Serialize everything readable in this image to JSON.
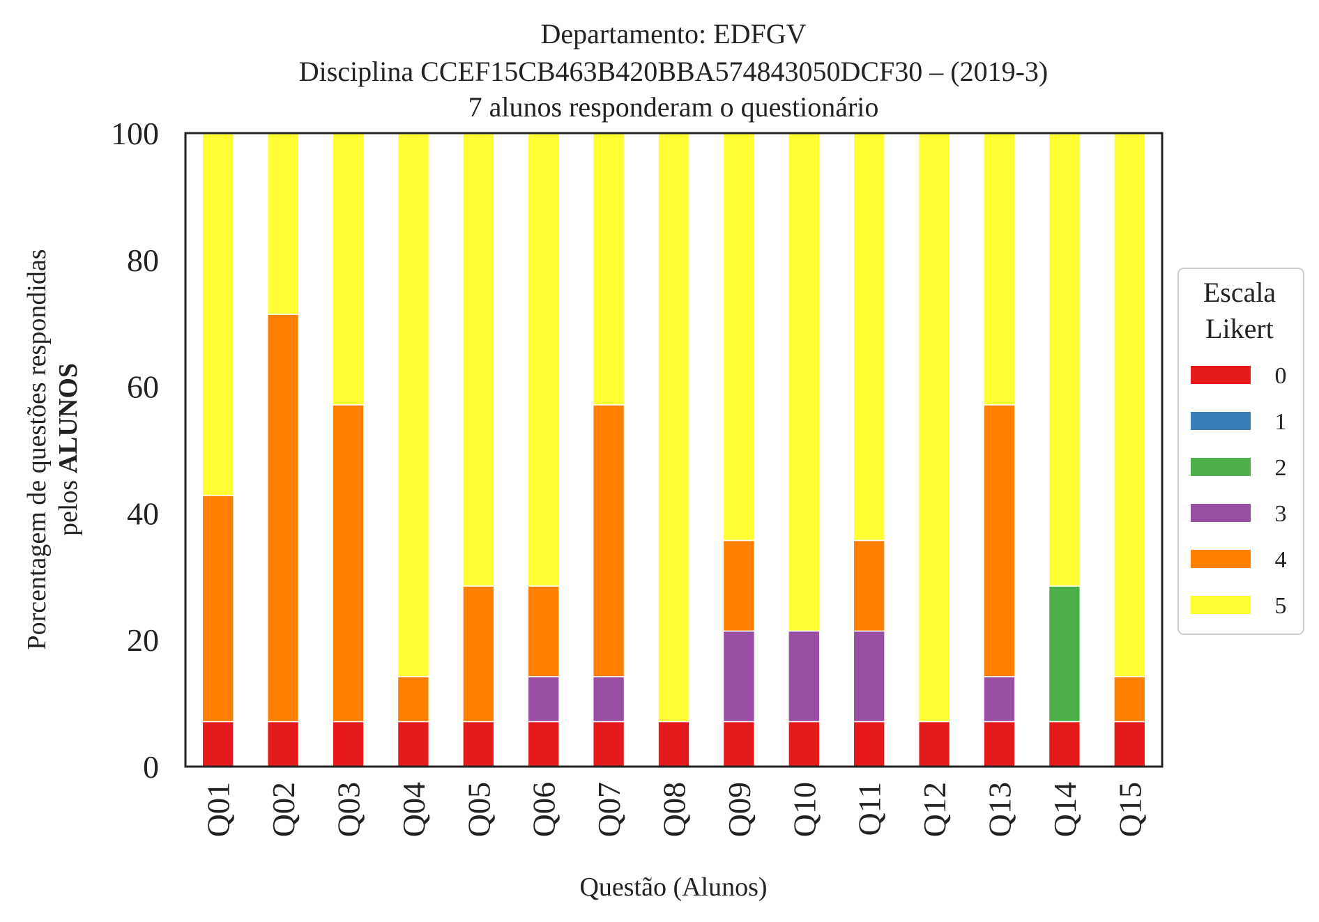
{
  "chart_data": {
    "type": "bar",
    "stacked": true,
    "title_lines": [
      "Departamento: EDFGV",
      "Disciplina CCEF15CB463B420BBA574843050DCF30 – (2019-3)",
      "7 alunos responderam o questionário"
    ],
    "xlabel": "Questão (Alunos)",
    "ylabel_line1": "Porcentagem de questões respondidas",
    "ylabel_line2_prefix": "pelos ",
    "ylabel_line2_bold": "ALUNOS",
    "ylim": [
      0,
      100
    ],
    "yticks": [
      "0",
      "20",
      "40",
      "60",
      "80",
      "100"
    ],
    "grid": false,
    "categories": [
      "Q01",
      "Q02",
      "Q03",
      "Q04",
      "Q05",
      "Q06",
      "Q07",
      "Q08",
      "Q09",
      "Q10",
      "Q11",
      "Q12",
      "Q13",
      "Q14",
      "Q15"
    ],
    "legend": {
      "title_lines": [
        "Escala",
        "Likert"
      ],
      "placement": "right"
    },
    "series": [
      {
        "name": "0",
        "color": "#e41a1c",
        "values": [
          7.1,
          7.1,
          7.1,
          7.1,
          7.1,
          7.1,
          7.1,
          7.1,
          7.1,
          7.1,
          7.1,
          7.1,
          7.1,
          7.1,
          7.1
        ]
      },
      {
        "name": "1",
        "color": "#377eb8",
        "values": [
          0,
          0,
          0,
          0,
          0,
          0,
          0,
          0,
          0,
          0,
          0,
          0,
          0,
          0,
          0
        ]
      },
      {
        "name": "2",
        "color": "#4daf4a",
        "values": [
          0,
          0,
          0,
          0,
          0,
          0,
          0,
          0,
          0,
          0,
          0,
          0,
          0,
          21.4,
          0
        ]
      },
      {
        "name": "3",
        "color": "#984ea3",
        "values": [
          0,
          0,
          0,
          0,
          0,
          7.1,
          7.1,
          0,
          14.3,
          14.3,
          14.3,
          0,
          7.1,
          0,
          0
        ]
      },
      {
        "name": "4",
        "color": "#ff7f00",
        "values": [
          35.7,
          64.3,
          50.0,
          7.1,
          21.4,
          14.3,
          42.9,
          0,
          14.3,
          0,
          14.3,
          0,
          42.9,
          0,
          7.1
        ]
      },
      {
        "name": "5",
        "color": "#ffff33",
        "values": [
          57.1,
          28.6,
          42.9,
          85.7,
          71.4,
          71.4,
          42.9,
          92.9,
          64.3,
          78.6,
          64.3,
          92.9,
          42.9,
          71.4,
          85.7
        ]
      }
    ]
  }
}
